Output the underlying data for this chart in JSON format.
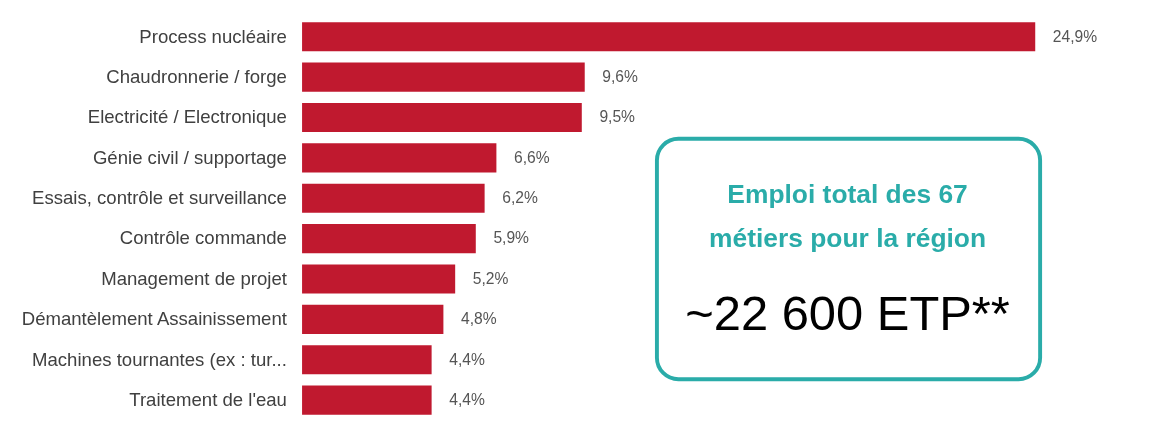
{
  "chart_data": {
    "type": "bar",
    "orientation": "horizontal",
    "categories": [
      "Process nucléaire",
      "Chaudronnerie / forge",
      "Electricité / Electronique",
      "Génie civil / supportage",
      "Essais, contrôle et surveillance",
      "Contrôle commande",
      "Management de projet",
      "Démantèlement Assainissement",
      "Machines tournantes (ex : tur...",
      "Traitement de l'eau"
    ],
    "values": [
      24.9,
      9.6,
      9.5,
      6.6,
      6.2,
      5.9,
      5.2,
      4.8,
      4.4,
      4.4
    ],
    "value_labels": [
      "24,9%",
      "9,6%",
      "9,5%",
      "6,6%",
      "6,2%",
      "5,9%",
      "5,2%",
      "4,8%",
      "4,4%",
      "4,4%"
    ],
    "color": "#c0192f",
    "xlim": [
      0,
      24.9
    ],
    "tick_labels": "y",
    "grid": false,
    "annotations": [
      "Emploi total des 67",
      "métiers pour la région",
      "~22 600 ETP**"
    ]
  }
}
